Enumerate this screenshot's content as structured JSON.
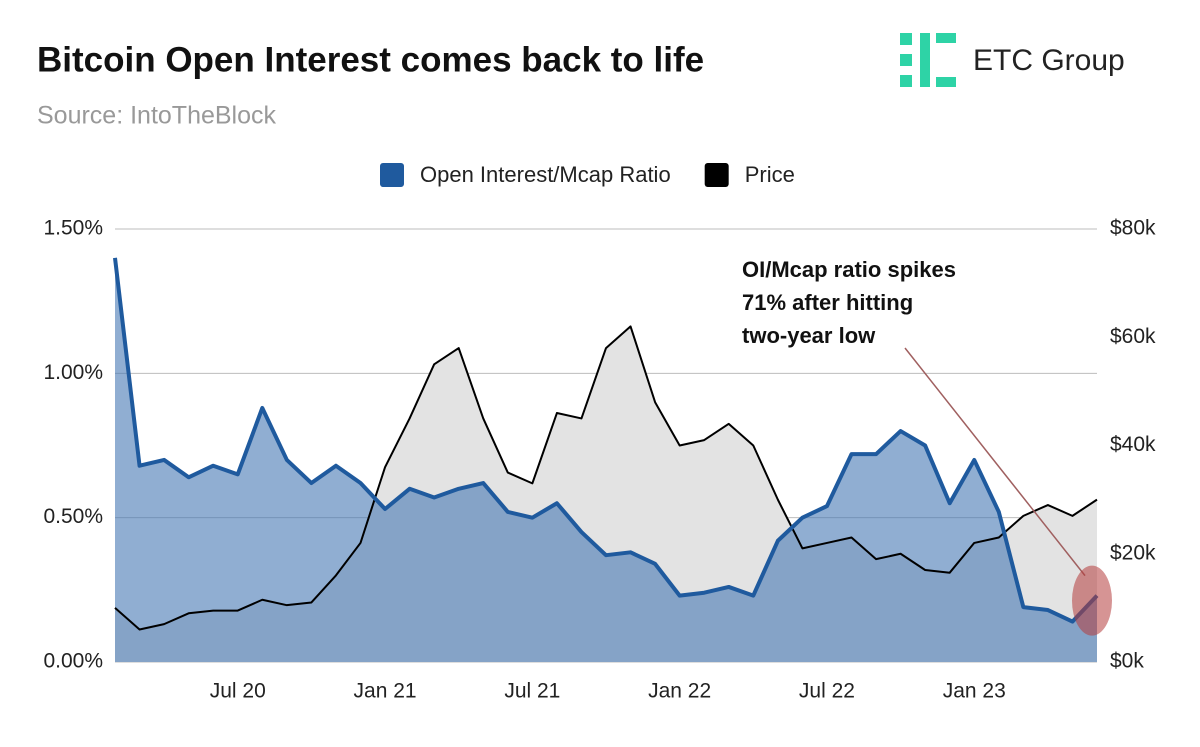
{
  "chart_data": {
    "type": "area",
    "title": "Bitcoin Open Interest comes back to life",
    "subtitle": "Source: IntoTheBlock",
    "logo": "ETC Group",
    "annotation": [
      "OI/Mcap ratio spikes",
      "71% after hitting",
      "two-year low"
    ],
    "x": [
      "2020-02",
      "2020-03",
      "2020-04",
      "2020-05",
      "2020-06",
      "2020-07",
      "2020-08",
      "2020-09",
      "2020-10",
      "2020-11",
      "2020-12",
      "2021-01",
      "2021-02",
      "2021-03",
      "2021-04",
      "2021-05",
      "2021-06",
      "2021-07",
      "2021-08",
      "2021-09",
      "2021-10",
      "2021-11",
      "2021-12",
      "2022-01",
      "2022-02",
      "2022-03",
      "2022-04",
      "2022-05",
      "2022-06",
      "2022-07",
      "2022-08",
      "2022-09",
      "2022-10",
      "2022-11",
      "2022-12",
      "2023-01",
      "2023-02",
      "2023-03",
      "2023-04",
      "2023-05",
      "2023-06"
    ],
    "xlim": [
      "2020-02",
      "2023-06"
    ],
    "xticks": [
      {
        "value": "2020-07",
        "label": "Jul 20"
      },
      {
        "value": "2021-01",
        "label": "Jan 21"
      },
      {
        "value": "2021-07",
        "label": "Jul 21"
      },
      {
        "value": "2022-01",
        "label": "Jan 22"
      },
      {
        "value": "2022-07",
        "label": "Jul 22"
      },
      {
        "value": "2023-01",
        "label": "Jan 23"
      }
    ],
    "series": [
      {
        "name": "Open Interest/Mcap Ratio",
        "color": "#1f5a9e",
        "axis": "y",
        "values": [
          1.4,
          0.68,
          0.7,
          0.64,
          0.68,
          0.65,
          0.88,
          0.7,
          0.62,
          0.68,
          0.62,
          0.53,
          0.6,
          0.57,
          0.6,
          0.62,
          0.52,
          0.5,
          0.55,
          0.45,
          0.37,
          0.38,
          0.34,
          0.23,
          0.24,
          0.26,
          0.23,
          0.42,
          0.5,
          0.54,
          0.72,
          0.72,
          0.8,
          0.75,
          0.55,
          0.7,
          0.52,
          0.19,
          0.18,
          0.14,
          0.23
        ]
      },
      {
        "name": "Price",
        "color": "#000000",
        "axis": "y2",
        "values": [
          10,
          6,
          7,
          9,
          9.5,
          9.5,
          11.5,
          10.5,
          11,
          16,
          22,
          36,
          45,
          55,
          58,
          45,
          35,
          33,
          46,
          45,
          58,
          62,
          48,
          40,
          41,
          44,
          40,
          30,
          21,
          22,
          23,
          19,
          20,
          17,
          16.5,
          22,
          23,
          27,
          29,
          27,
          30
        ]
      }
    ],
    "ylim": [
      0,
      1.5
    ],
    "yticks": [
      {
        "value": 0,
        "label": "0.00%"
      },
      {
        "value": 0.5,
        "label": "0.50%"
      },
      {
        "value": 1,
        "label": "1.00%"
      },
      {
        "value": 1.5,
        "label": "1.50%"
      }
    ],
    "y2lim": [
      0,
      80
    ],
    "y2ticks": [
      {
        "value": 0,
        "label": "$0k"
      },
      {
        "value": 20,
        "label": "$20k"
      },
      {
        "value": 40,
        "label": "$40k"
      },
      {
        "value": 60,
        "label": "$60k"
      },
      {
        "value": 80,
        "label": "$80k"
      }
    ],
    "grid": true
  }
}
